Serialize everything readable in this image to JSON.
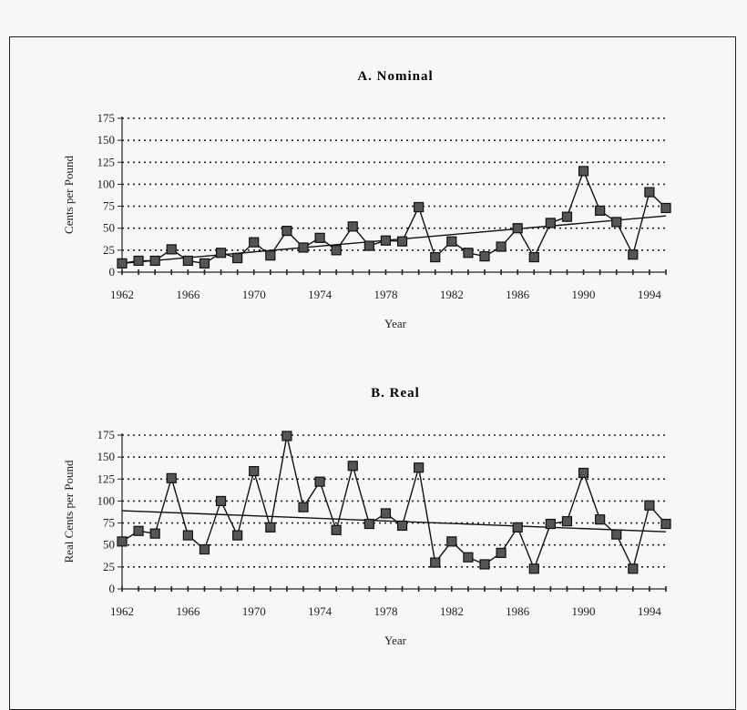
{
  "chart_data": [
    {
      "type": "line",
      "title": "A. Nominal",
      "xlabel": "Year",
      "ylabel": "Cents per Pound",
      "xlim": [
        1962,
        1995
      ],
      "ylim": [
        0,
        175
      ],
      "yticks": [
        0,
        25,
        50,
        75,
        100,
        125,
        150,
        175
      ],
      "xticks": [
        1962,
        1966,
        1970,
        1974,
        1978,
        1982,
        1986,
        1990,
        1994
      ],
      "grid": true,
      "series": [
        {
          "x": [
            1962,
            1963,
            1964,
            1965,
            1966,
            1967,
            1968,
            1969,
            1970,
            1971,
            1972,
            1973,
            1974,
            1975,
            1976,
            1977,
            1978,
            1979,
            1980,
            1981,
            1982,
            1983,
            1984,
            1985,
            1986,
            1987,
            1988,
            1989,
            1990,
            1991,
            1992,
            1993,
            1994,
            1995
          ],
          "values": [
            10,
            13,
            13,
            26,
            13,
            10,
            22,
            16,
            34,
            19,
            47,
            28,
            39,
            25,
            52,
            30,
            36,
            35,
            74,
            17,
            35,
            22,
            18,
            29,
            50,
            17,
            56,
            63,
            115,
            70,
            57,
            20,
            91,
            73
          ]
        },
        {
          "x": [
            1962,
            1995
          ],
          "values": [
            10,
            64
          ]
        }
      ]
    },
    {
      "type": "line",
      "title": "B. Real",
      "xlabel": "Year",
      "ylabel": "Real Cents per Pound",
      "xlim": [
        1962,
        1995
      ],
      "ylim": [
        0,
        175
      ],
      "yticks": [
        0,
        25,
        50,
        75,
        100,
        125,
        150,
        175
      ],
      "xticks": [
        1962,
        1966,
        1970,
        1974,
        1978,
        1982,
        1986,
        1990,
        1994
      ],
      "grid": true,
      "series": [
        {
          "x": [
            1962,
            1963,
            1964,
            1965,
            1966,
            1967,
            1968,
            1969,
            1970,
            1971,
            1972,
            1973,
            1974,
            1975,
            1976,
            1977,
            1978,
            1979,
            1980,
            1981,
            1982,
            1983,
            1984,
            1985,
            1986,
            1987,
            1988,
            1989,
            1990,
            1991,
            1992,
            1993,
            1994,
            1995
          ],
          "values": [
            54,
            66,
            63,
            126,
            61,
            45,
            100,
            61,
            134,
            70,
            174,
            93,
            122,
            67,
            140,
            74,
            86,
            72,
            138,
            30,
            54,
            36,
            28,
            41,
            70,
            23,
            74,
            77,
            132,
            79,
            62,
            23,
            95,
            74
          ]
        },
        {
          "x": [
            1962,
            1995
          ],
          "values": [
            89,
            65
          ]
        }
      ]
    }
  ]
}
